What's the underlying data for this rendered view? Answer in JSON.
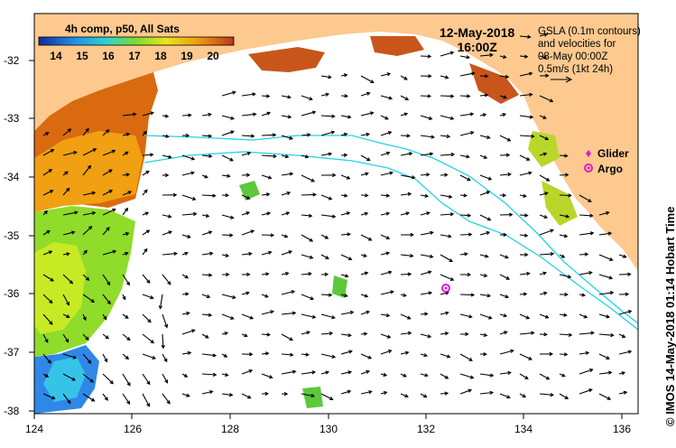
{
  "colorbar": {
    "title": "4h comp, p50, All Sats",
    "ticks": [
      "14",
      "15",
      "16",
      "17",
      "18",
      "19",
      "20"
    ]
  },
  "date": {
    "day": "12-May-2018",
    "time": "16:00Z"
  },
  "info": {
    "line1": "GSLA (0.1m contours)",
    "line2": "and velocities for",
    "line3": "08-May 00:00Z",
    "line4": "0.5m/s (1kt 24h)"
  },
  "legend": {
    "glider": "Glider",
    "argo": "Argo"
  },
  "axes": {
    "lon_ticks": [
      "124",
      "126",
      "128",
      "130",
      "132",
      "134",
      "136"
    ],
    "lat_ticks": [
      "-32",
      "-33",
      "-34",
      "-35",
      "-36",
      "-37",
      "-38"
    ]
  },
  "credit": "© IMOS 14-May-2018 01:14 Hobart Time",
  "colors": {
    "land": "#fdc98f",
    "current": "#22d3e6",
    "argo": "#e01bd0",
    "sst_warm": "#d96a10",
    "sst_green": "#8fdc2a",
    "sst_blue": "#2f88e8"
  },
  "argo_float": {
    "lon": 132.5,
    "lat": -35.9
  }
}
